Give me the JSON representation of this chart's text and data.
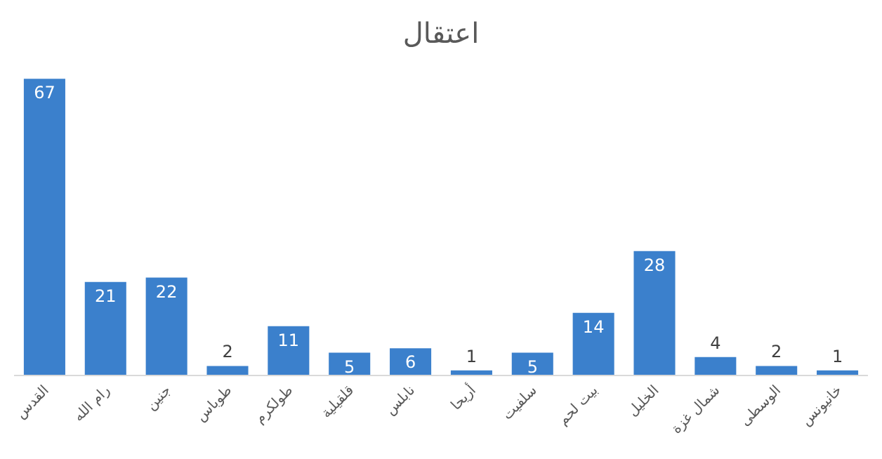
{
  "chart_data": {
    "type": "bar",
    "title": "اعتقال",
    "categories": [
      "القدس",
      "رام الله",
      "جنين",
      "طوباس",
      "طولكرم",
      "قلقيلية",
      "نابلس",
      "أريحا",
      "سلفيت",
      "بيت لحم",
      "الخليل",
      "شمال غزة",
      "الوسطى",
      "خانيونس"
    ],
    "values": [
      67,
      21,
      22,
      2,
      11,
      5,
      6,
      1,
      5,
      14,
      28,
      4,
      2,
      1
    ],
    "color": "#3b80cc",
    "data_labels": true
  }
}
